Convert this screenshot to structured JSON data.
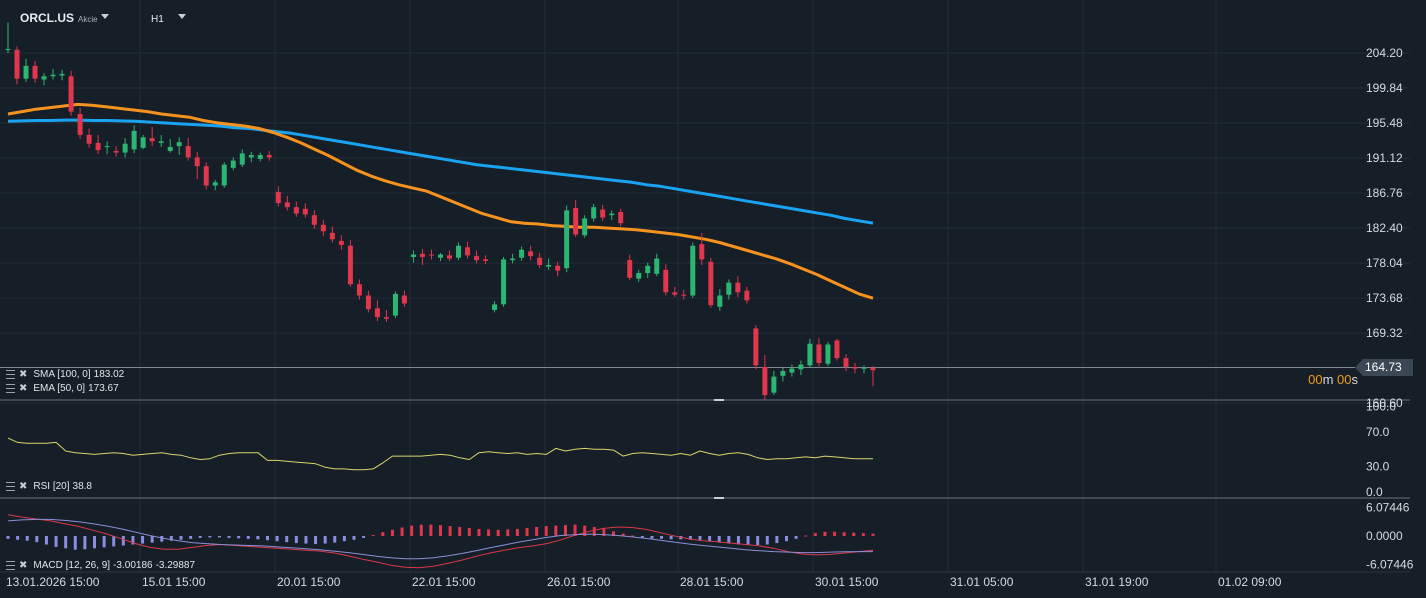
{
  "header": {
    "symbol": "ORCL.US",
    "instrument_type": "Akcie",
    "timeframe": "H1"
  },
  "indicators": {
    "sma": {
      "label": "SMA [100, 0]",
      "value": "183.02",
      "color": "#1aa3f0"
    },
    "ema": {
      "label": "EMA [50, 0]",
      "value": "173.67",
      "color": "#f5931e"
    },
    "rsi": {
      "label": "RSI [20]",
      "value": "38.8",
      "color": "#d8d76a"
    },
    "macd": {
      "label": "MACD [12, 26, 9]",
      "value1": "-3.00186",
      "value2": "-3.29887"
    }
  },
  "current_price": "164.73",
  "countdown": {
    "m": "00",
    "s": "00"
  },
  "colors": {
    "background": "#161e27",
    "up_candle": "#2bb673",
    "down_candle": "#e0364e",
    "grid": "#232d38",
    "macd_hist_positive": "#e0364e",
    "macd_hist_negative": "#8b8de0"
  },
  "chart_data": {
    "type": "candlestick",
    "price_axis": {
      "ticks": [
        "204.20",
        "199.84",
        "195.48",
        "191.12",
        "186.76",
        "182.40",
        "178.04",
        "173.68",
        "169.32",
        "160.60"
      ],
      "ylim": [
        159.2,
        208.5
      ]
    },
    "time_axis": {
      "ticks": [
        "13.01.2026  15:00",
        "15.01  15:00",
        "20.01  15:00",
        "22.01  15:00",
        "26.01  15:00",
        "28.01  15:00",
        "30.01  15:00",
        "31.01  05:00",
        "31.01  19:00",
        "01.02  09:00"
      ]
    },
    "candles": [
      [
        204.6,
        208.0,
        204.2,
        204.7
      ],
      [
        204.6,
        205.0,
        200.3,
        201.0
      ],
      [
        201.0,
        203.5,
        200.6,
        202.6
      ],
      [
        202.6,
        203.2,
        200.5,
        201.0
      ],
      [
        200.9,
        201.7,
        200.2,
        201.3
      ],
      [
        201.3,
        202.2,
        200.9,
        201.5
      ],
      [
        201.4,
        202.1,
        200.8,
        201.6
      ],
      [
        201.3,
        202.0,
        196.4,
        196.9
      ],
      [
        196.6,
        197.4,
        193.5,
        194.0
      ],
      [
        194.0,
        194.8,
        192.4,
        192.9
      ],
      [
        193.0,
        194.0,
        191.6,
        192.1
      ],
      [
        192.5,
        193.2,
        191.6,
        192.6
      ],
      [
        192.0,
        192.6,
        191.3,
        191.8
      ],
      [
        191.8,
        193.6,
        191.2,
        192.9
      ],
      [
        192.2,
        195.2,
        191.7,
        194.5
      ],
      [
        192.4,
        194.0,
        192.2,
        193.7
      ],
      [
        193.6,
        195.0,
        192.6,
        193.2
      ],
      [
        193.0,
        194.0,
        192.5,
        193.2
      ],
      [
        192.0,
        193.5,
        191.8,
        192.5
      ],
      [
        192.6,
        193.7,
        191.5,
        193.1
      ],
      [
        192.6,
        193.6,
        190.8,
        191.2
      ],
      [
        191.2,
        191.9,
        188.5,
        190.1
      ],
      [
        190.1,
        190.6,
        187.2,
        187.7
      ],
      [
        187.7,
        188.4,
        187.1,
        188.1
      ],
      [
        187.7,
        190.6,
        187.4,
        190.3
      ],
      [
        189.9,
        191.2,
        189.6,
        190.8
      ],
      [
        190.3,
        192.2,
        190.0,
        191.7
      ],
      [
        191.2,
        191.9,
        190.6,
        191.5
      ],
      [
        191.0,
        191.8,
        190.7,
        191.5
      ],
      [
        191.5,
        192.0,
        190.8,
        191.2
      ],
      [
        186.9,
        187.6,
        185.1,
        185.5
      ],
      [
        185.6,
        186.4,
        184.6,
        185.0
      ],
      [
        185.0,
        185.7,
        183.8,
        184.2
      ],
      [
        184.8,
        185.5,
        183.7,
        184.1
      ],
      [
        184.0,
        184.6,
        182.3,
        182.8
      ],
      [
        182.8,
        183.4,
        181.4,
        182.0
      ],
      [
        181.8,
        182.6,
        180.6,
        181.0
      ],
      [
        180.8,
        181.5,
        179.7,
        180.3
      ],
      [
        180.2,
        180.9,
        175.1,
        175.4
      ],
      [
        175.4,
        176.0,
        173.5,
        174.0
      ],
      [
        174.0,
        174.6,
        171.9,
        172.3
      ],
      [
        172.4,
        173.4,
        170.8,
        171.3
      ],
      [
        171.3,
        172.2,
        170.7,
        171.1
      ],
      [
        171.5,
        174.5,
        171.2,
        174.2
      ],
      [
        174.0,
        174.6,
        172.6,
        173.0
      ],
      [
        178.8,
        179.6,
        178.1,
        179.1
      ],
      [
        179.2,
        179.8,
        177.8,
        178.8
      ],
      [
        179.1,
        179.7,
        178.5,
        179.0
      ],
      [
        178.7,
        179.3,
        178.3,
        179.1
      ],
      [
        179.0,
        179.6,
        178.3,
        178.6
      ],
      [
        178.7,
        180.6,
        178.4,
        180.2
      ],
      [
        180.0,
        180.7,
        178.6,
        179.0
      ],
      [
        178.9,
        179.6,
        178.0,
        178.4
      ],
      [
        178.5,
        179.0,
        177.9,
        178.3
      ],
      [
        172.2,
        173.3,
        171.9,
        172.9
      ],
      [
        172.9,
        178.8,
        172.6,
        178.5
      ],
      [
        178.4,
        179.2,
        178.0,
        178.6
      ],
      [
        178.7,
        180.1,
        178.3,
        179.7
      ],
      [
        179.5,
        180.2,
        178.4,
        178.9
      ],
      [
        178.7,
        179.3,
        177.4,
        177.8
      ],
      [
        177.6,
        178.6,
        177.2,
        177.8
      ],
      [
        177.7,
        178.2,
        176.4,
        177.1
      ],
      [
        177.4,
        185.2,
        176.9,
        184.6
      ],
      [
        184.9,
        185.9,
        181.3,
        181.6
      ],
      [
        181.5,
        184.0,
        181.2,
        183.6
      ],
      [
        183.6,
        185.4,
        183.2,
        185.0
      ],
      [
        184.7,
        185.3,
        183.3,
        183.7
      ],
      [
        184.0,
        184.6,
        183.4,
        184.2
      ],
      [
        184.4,
        184.8,
        182.6,
        183.0
      ],
      [
        178.4,
        179.1,
        175.9,
        176.2
      ],
      [
        176.1,
        177.2,
        175.7,
        176.8
      ],
      [
        176.8,
        178.1,
        176.2,
        177.7
      ],
      [
        176.7,
        179.2,
        176.4,
        178.6
      ],
      [
        177.2,
        177.9,
        174.0,
        174.4
      ],
      [
        174.4,
        175.1,
        173.8,
        174.1
      ],
      [
        174.1,
        174.7,
        173.5,
        174.0
      ],
      [
        174.0,
        180.6,
        173.7,
        180.2
      ],
      [
        180.4,
        181.8,
        177.8,
        178.5
      ],
      [
        178.2,
        178.7,
        172.5,
        172.8
      ],
      [
        172.6,
        174.8,
        172.1,
        174.0
      ],
      [
        174.1,
        176.0,
        173.5,
        175.6
      ],
      [
        175.6,
        176.4,
        173.8,
        174.4
      ],
      [
        174.6,
        175.1,
        173.0,
        173.4
      ],
      [
        169.9,
        170.3,
        164.8,
        165.3
      ],
      [
        165.1,
        166.6,
        161.0,
        161.6
      ],
      [
        161.9,
        164.6,
        161.6,
        163.9
      ],
      [
        164.0,
        165.0,
        163.3,
        164.6
      ],
      [
        164.4,
        165.4,
        163.9,
        164.9
      ],
      [
        164.8,
        165.9,
        164.1,
        165.4
      ],
      [
        165.3,
        168.6,
        165.0,
        168.0
      ],
      [
        167.9,
        168.7,
        165.2,
        165.6
      ],
      [
        165.5,
        168.2,
        165.2,
        167.9
      ],
      [
        168.4,
        168.6,
        165.9,
        166.2
      ],
      [
        166.2,
        166.7,
        164.6,
        165.1
      ],
      [
        165.1,
        165.6,
        164.3,
        164.9
      ],
      [
        164.9,
        165.3,
        164.3,
        165.0
      ],
      [
        165.0,
        165.2,
        162.7,
        164.7
      ]
    ],
    "ema_50": [
      196.6,
      196.9,
      197.2,
      197.4,
      197.6,
      197.8,
      197.7,
      197.5,
      197.3,
      197.1,
      196.9,
      196.6,
      196.4,
      196.2,
      195.8,
      195.5,
      195.3,
      195.1,
      194.8,
      194.3,
      193.7,
      193.0,
      192.2,
      191.4,
      190.5,
      189.6,
      188.9,
      188.3,
      187.8,
      187.4,
      187.0,
      186.3,
      185.6,
      184.9,
      184.2,
      183.7,
      183.2,
      183.0,
      182.9,
      182.7,
      182.6,
      182.5,
      182.5,
      182.4,
      182.3,
      182.2,
      182.0,
      181.8,
      181.6,
      181.3,
      181.0,
      180.6,
      180.1,
      179.6,
      179.1,
      178.6,
      178.0,
      177.3,
      176.6,
      175.8,
      175.0,
      174.2,
      173.67
    ],
    "sma_100": [
      195.7,
      195.75,
      195.8,
      195.8,
      195.85,
      195.85,
      195.8,
      195.8,
      195.75,
      195.7,
      195.6,
      195.5,
      195.4,
      195.3,
      195.2,
      195.1,
      194.9,
      194.8,
      194.6,
      194.4,
      194.2,
      193.9,
      193.6,
      193.3,
      193.0,
      192.7,
      192.4,
      192.1,
      191.8,
      191.5,
      191.2,
      190.9,
      190.6,
      190.3,
      190.1,
      189.9,
      189.7,
      189.5,
      189.3,
      189.1,
      188.9,
      188.7,
      188.5,
      188.3,
      188.1,
      187.8,
      187.6,
      187.3,
      187.0,
      186.7,
      186.4,
      186.1,
      185.8,
      185.5,
      185.2,
      184.9,
      184.6,
      184.3,
      184.0,
      183.6,
      183.3,
      183.02
    ],
    "rsi": {
      "ylim": [
        0,
        100
      ],
      "ticks": [
        "100.0",
        "70.0",
        "30.0",
        "0.0"
      ],
      "values": [
        63,
        58,
        57,
        57,
        57,
        58,
        48,
        46,
        45,
        44,
        45,
        46,
        45,
        43,
        44,
        45,
        46,
        44,
        43,
        40,
        38,
        39,
        43,
        45,
        46,
        46,
        46,
        37,
        37,
        36,
        35,
        34,
        33,
        29,
        27,
        27,
        26,
        26,
        27,
        34,
        42,
        42,
        42,
        42,
        43,
        44,
        43,
        40,
        38,
        46,
        47,
        46,
        45,
        46,
        44,
        45,
        44,
        51,
        48,
        50,
        51,
        50,
        50,
        49,
        42,
        45,
        46,
        45,
        44,
        43,
        45,
        43,
        48,
        45,
        43,
        45,
        46,
        44,
        40,
        38,
        39,
        39,
        40,
        41,
        40,
        42,
        41,
        40,
        39,
        39,
        38.8
      ]
    },
    "macd": {
      "ticks": [
        "6.07446",
        "0.0000",
        "-6.07446"
      ],
      "ylim": [
        -7.5,
        7.5
      ],
      "histogram": [
        -0.6,
        -0.8,
        -1.0,
        -1.3,
        -1.8,
        -2.3,
        -2.6,
        -2.9,
        -2.8,
        -2.6,
        -2.4,
        -2.2,
        -2.0,
        -1.8,
        -1.6,
        -1.4,
        -1.2,
        -1.0,
        -0.8,
        -0.6,
        -0.4,
        -0.3,
        -0.3,
        -0.4,
        -0.5,
        -0.6,
        -0.7,
        -0.9,
        -1.1,
        -1.3,
        -1.5,
        -1.6,
        -1.7,
        -1.6,
        -1.4,
        -1.1,
        -0.8,
        -0.4,
        0.2,
        0.8,
        1.3,
        1.8,
        2.2,
        2.4,
        2.4,
        2.3,
        2.1,
        1.9,
        1.7,
        1.5,
        1.4,
        1.3,
        1.4,
        1.5,
        1.7,
        1.9,
        2.1,
        2.2,
        2.3,
        2.4,
        2.2,
        1.9,
        1.5,
        1.0,
        0.5,
        0.1,
        -0.3,
        -0.5,
        -0.6,
        -0.7,
        -0.7,
        -0.8,
        -1.0,
        -1.2,
        -1.4,
        -1.6,
        -1.8,
        -1.9,
        -1.9,
        -1.8,
        -1.5,
        -1.1,
        -0.6,
        0.1,
        0.6,
        0.9,
        0.9,
        0.8,
        0.7,
        0.6,
        0.5
      ],
      "macd_line": [
        4.5,
        4.0,
        3.6,
        3.2,
        2.6,
        2.0,
        1.2,
        0.4,
        -0.6,
        -1.6,
        -2.4,
        -2.8,
        -2.8,
        -2.4,
        -2.0,
        -1.8,
        -2.0,
        -2.2,
        -2.4,
        -2.6,
        -2.8,
        -3.0,
        -3.2,
        -3.6,
        -4.2,
        -4.9,
        -5.5,
        -6.2,
        -6.6,
        -6.7,
        -6.4,
        -5.8,
        -5.1,
        -4.3,
        -3.6,
        -3.0,
        -2.5,
        -2.1,
        -1.6,
        -0.8,
        0.2,
        1.0,
        1.6,
        1.9,
        1.8,
        1.4,
        0.7,
        0.0,
        -0.6,
        -1.0,
        -1.2,
        -1.5,
        -1.8,
        -2.1,
        -2.6,
        -3.3,
        -3.8,
        -4.0,
        -3.9,
        -3.6,
        -3.3,
        -3.00186
      ],
      "signal_line": [
        3.2,
        3.4,
        3.5,
        3.5,
        3.3,
        3.0,
        2.6,
        2.1,
        1.5,
        0.8,
        0.1,
        -0.5,
        -1.0,
        -1.4,
        -1.6,
        -1.8,
        -1.9,
        -2.0,
        -2.1,
        -2.3,
        -2.5,
        -2.7,
        -2.9,
        -3.2,
        -3.5,
        -3.9,
        -4.3,
        -4.6,
        -4.8,
        -4.8,
        -4.6,
        -4.2,
        -3.7,
        -3.1,
        -2.5,
        -1.9,
        -1.3,
        -0.8,
        -0.3,
        0.1,
        0.3,
        0.4,
        0.3,
        0.1,
        -0.2,
        -0.5,
        -0.9,
        -1.3,
        -1.7,
        -2.0,
        -2.3,
        -2.6,
        -2.9,
        -3.1,
        -3.3,
        -3.4,
        -3.5,
        -3.5,
        -3.4,
        -3.35,
        -3.3,
        -3.29887
      ]
    }
  }
}
